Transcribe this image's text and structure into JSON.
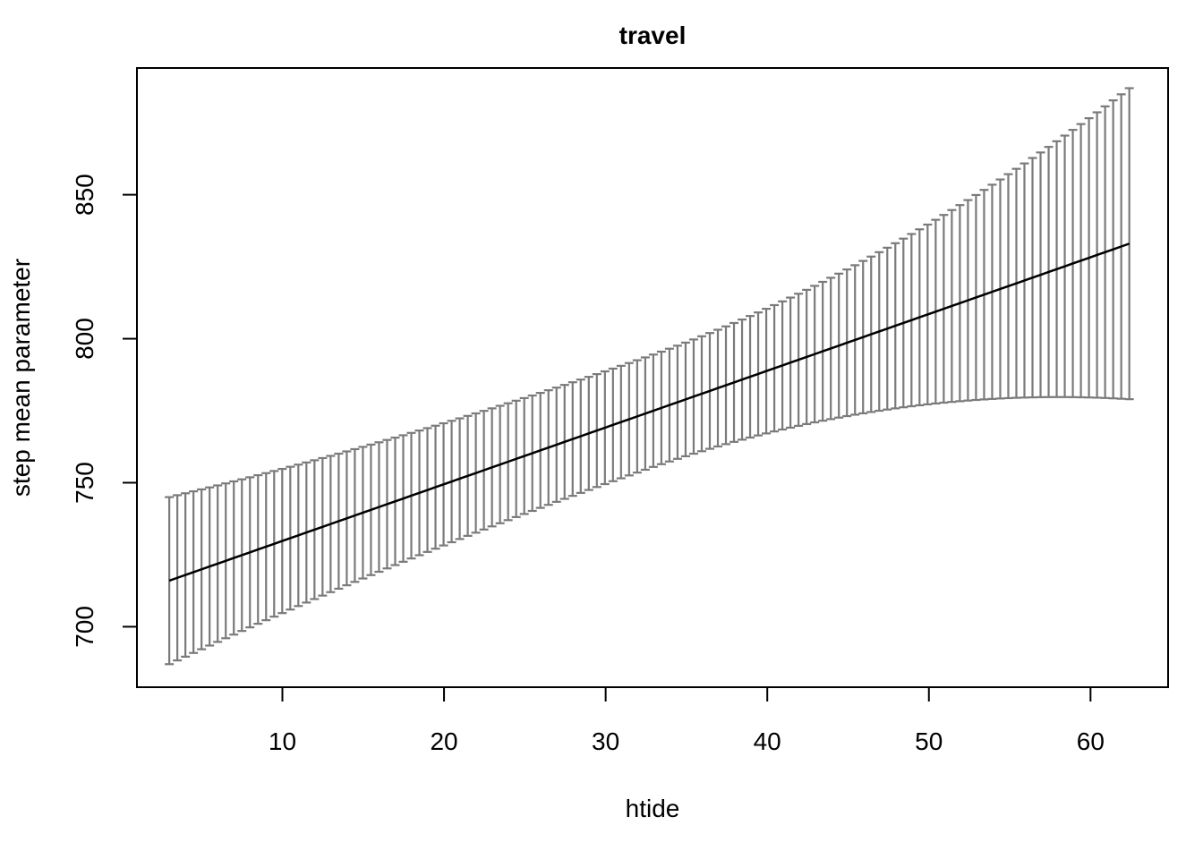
{
  "chart_data": {
    "type": "line",
    "title": "travel",
    "xlabel": "htide",
    "ylabel": "step mean parameter",
    "xlim": [
      1.0,
      64.8
    ],
    "ylim": [
      679,
      894
    ],
    "xticks": [
      10,
      20,
      30,
      40,
      50,
      60
    ],
    "yticks": [
      700,
      750,
      800,
      850
    ],
    "grid": false,
    "legend": "none",
    "colors": {
      "line": "#000000",
      "error_bars": "#7a7a7a",
      "frame": "#000000"
    },
    "series": [
      {
        "role": "estimate",
        "x_start": 3.0,
        "x_end": 62.4,
        "n_points": 120,
        "y_start": 716.0,
        "y_end": 833.0
      },
      {
        "role": "upper_ci",
        "x_start": 3.0,
        "x_end": 62.4,
        "n_points": 120,
        "y_at_x_start": 745.5,
        "y_at_x_end": 887.0
      },
      {
        "role": "lower_ci",
        "x_start": 3.0,
        "x_end": 62.4,
        "n_points": 120,
        "y_at_x_start": 687.0,
        "y_at_x_end": 780.0
      }
    ]
  }
}
